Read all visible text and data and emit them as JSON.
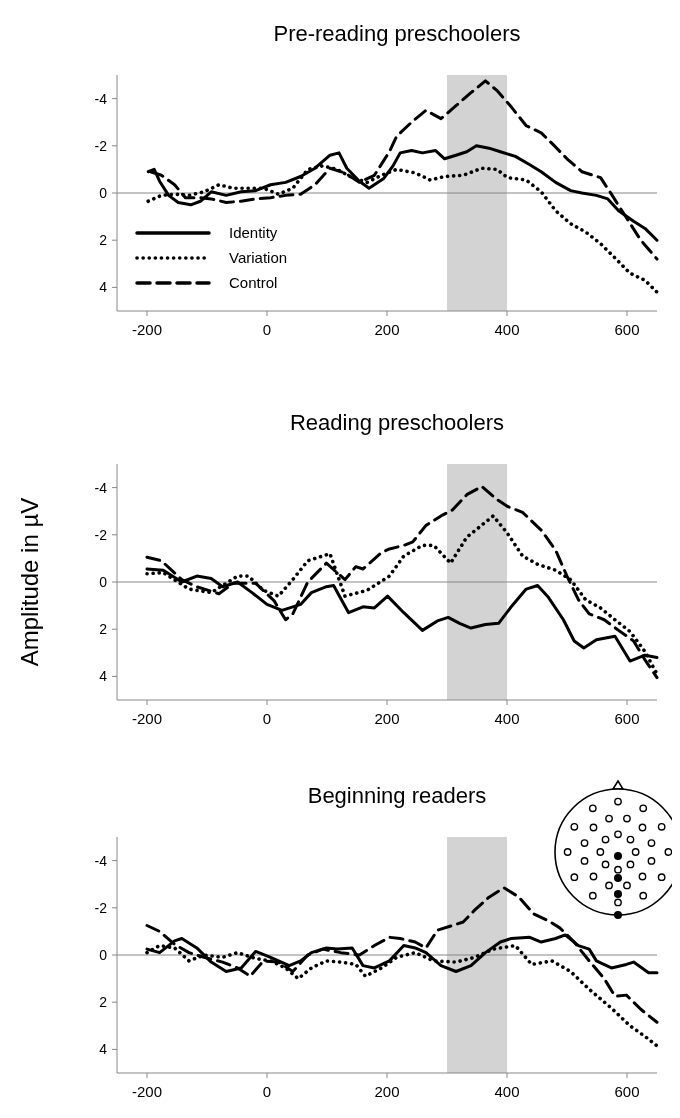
{
  "chart_data": [
    {
      "type": "line",
      "title": "Pre-reading preschoolers",
      "xlim": [
        -250,
        650
      ],
      "xticks": [
        -200,
        0,
        200,
        400,
        600
      ],
      "ylim": [
        5,
        -5
      ],
      "yticks": [
        -4,
        -2,
        0,
        2,
        4
      ],
      "legend": "bottom left",
      "bands": [
        {
          "axis": "x",
          "from": 300,
          "to": 400,
          "color": "#d3d3d3"
        }
      ],
      "ref_lines": [
        {
          "axis": "y",
          "value": 0,
          "color": "#888888"
        }
      ],
      "series": [
        {
          "name": "Identity",
          "color": "#000000",
          "line_style": "solid",
          "x": [
            -198,
            -188,
            -179,
            -164,
            -148,
            -127,
            -111,
            -93,
            -68,
            -43,
            -19,
            6,
            31,
            56,
            80,
            105,
            120,
            133,
            154,
            170,
            194,
            210,
            222,
            241,
            259,
            281,
            296,
            315,
            333,
            349,
            370,
            389,
            414,
            438,
            457,
            481,
            506,
            525,
            549,
            568,
            586,
            611,
            630,
            650
          ],
          "values": [
            -0.9,
            -1.0,
            -0.5,
            0.1,
            0.4,
            0.5,
            0.35,
            -0.05,
            0.1,
            -0.05,
            -0.1,
            -0.35,
            -0.45,
            -0.7,
            -1.05,
            -1.6,
            -1.7,
            -1.05,
            -0.5,
            -0.2,
            -0.6,
            -1.15,
            -1.7,
            -1.8,
            -1.7,
            -1.8,
            -1.45,
            -1.6,
            -1.75,
            -2.0,
            -1.9,
            -1.75,
            -1.55,
            -1.2,
            -0.9,
            -0.45,
            -0.1,
            0,
            0.1,
            0.25,
            0.75,
            1.2,
            1.5,
            2.0
          ]
        },
        {
          "name": "Variation",
          "color": "#000000",
          "line_style": "dotted",
          "x": [
            -198,
            -176,
            -154,
            -130,
            -105,
            -80,
            -56,
            -31,
            -6,
            19,
            43,
            68,
            93,
            117,
            142,
            167,
            191,
            216,
            247,
            272,
            296,
            327,
            358,
            383,
            401,
            432,
            457,
            481,
            506,
            531,
            556,
            580,
            605,
            630,
            650
          ],
          "values": [
            0.35,
            0.1,
            0.05,
            0.1,
            -0.05,
            -0.35,
            -0.2,
            -0.2,
            -0.2,
            0.05,
            -0.2,
            -1.0,
            -1.15,
            -1.0,
            -0.65,
            -0.45,
            -0.75,
            -1.0,
            -0.85,
            -0.55,
            -0.7,
            -0.75,
            -1.05,
            -1.0,
            -0.65,
            -0.55,
            -0.05,
            0.75,
            1.3,
            1.65,
            2.15,
            2.75,
            3.4,
            3.7,
            4.2
          ]
        },
        {
          "name": "Control",
          "color": "#000000",
          "line_style": "dashed",
          "x": [
            -194,
            -176,
            -154,
            -136,
            -111,
            -93,
            -68,
            -43,
            -19,
            6,
            31,
            56,
            80,
            105,
            130,
            154,
            179,
            204,
            216,
            241,
            265,
            290,
            315,
            340,
            364,
            383,
            407,
            432,
            457,
            475,
            500,
            525,
            556,
            574,
            599,
            623,
            650
          ],
          "values": [
            -0.9,
            -0.75,
            -0.35,
            0.2,
            0.2,
            0.25,
            0.4,
            0.35,
            0.25,
            0.2,
            0.1,
            0.05,
            -0.35,
            -1.05,
            -0.85,
            -0.45,
            -0.75,
            -1.75,
            -2.4,
            -3.0,
            -3.5,
            -3.15,
            -3.7,
            -4.25,
            -4.75,
            -4.35,
            -3.65,
            -2.85,
            -2.55,
            -2.1,
            -1.45,
            -0.9,
            -0.65,
            0.05,
            1.05,
            2.0,
            2.8
          ]
        }
      ]
    },
    {
      "type": "line",
      "title": "Reading preschoolers",
      "ylabel": "Amplitude in µV",
      "xlim": [
        -250,
        650
      ],
      "xticks": [
        -200,
        0,
        200,
        400,
        600
      ],
      "ylim": [
        5,
        -5
      ],
      "yticks": [
        -4,
        -2,
        0,
        2,
        4
      ],
      "bands": [
        {
          "axis": "x",
          "from": 300,
          "to": 400,
          "color": "#d3d3d3"
        }
      ],
      "ref_lines": [
        {
          "axis": "y",
          "value": 0,
          "color": "#888888"
        }
      ],
      "series": [
        {
          "color": "#000000",
          "line_style": "solid",
          "x": [
            -200,
            -173,
            -142,
            -117,
            -93,
            -74,
            -49,
            -25,
            0,
            25,
            56,
            74,
            99,
            111,
            136,
            160,
            179,
            201,
            228,
            259,
            284,
            302,
            321,
            340,
            364,
            386,
            407,
            432,
            451,
            469,
            494,
            512,
            528,
            549,
            580,
            605,
            630,
            650
          ],
          "values": [
            -0.55,
            -0.5,
            0,
            -0.25,
            -0.15,
            0.2,
            0,
            0.45,
            0.95,
            1.2,
            0.95,
            0.45,
            0.2,
            0.15,
            1.3,
            1.05,
            1.1,
            0.6,
            1.3,
            2.05,
            1.65,
            1.5,
            1.75,
            1.95,
            1.8,
            1.75,
            1.05,
            0.3,
            0.15,
            0.65,
            1.6,
            2.5,
            2.8,
            2.45,
            2.3,
            3.35,
            3.1,
            3.2
          ]
        },
        {
          "color": "#000000",
          "line_style": "dotted",
          "x": [
            -200,
            -173,
            -130,
            -93,
            -49,
            -31,
            -6,
            19,
            43,
            68,
            105,
            130,
            167,
            204,
            228,
            259,
            278,
            306,
            333,
            377,
            401,
            426,
            451,
            481,
            506,
            531,
            556,
            580,
            605,
            630,
            650
          ],
          "values": [
            -0.35,
            -0.4,
            0.3,
            0.45,
            -0.25,
            -0.25,
            0.35,
            0.6,
            -0.1,
            -0.9,
            -1.2,
            0.6,
            0.35,
            -0.25,
            -1.1,
            -1.55,
            -1.55,
            -0.8,
            -1.9,
            -2.8,
            -2.05,
            -1.1,
            -0.75,
            -0.5,
            -0.1,
            0.75,
            1.1,
            1.6,
            2.1,
            2.95,
            3.9
          ]
        },
        {
          "color": "#000000",
          "line_style": "dashed",
          "x": [
            -200,
            -176,
            -142,
            -117,
            -80,
            -56,
            -19,
            12,
            31,
            43,
            68,
            99,
            130,
            148,
            160,
            191,
            204,
            228,
            243,
            265,
            290,
            309,
            333,
            358,
            383,
            401,
            426,
            457,
            481,
            500,
            519,
            537,
            562,
            586,
            611,
            630,
            650
          ],
          "values": [
            -1.05,
            -0.9,
            -0.1,
            0.2,
            0.5,
            0.05,
            0.05,
            0.8,
            1.6,
            1.35,
            0,
            -0.8,
            -0.1,
            -0.65,
            -0.55,
            -1.25,
            -1.4,
            -1.55,
            -1.7,
            -2.4,
            -2.8,
            -3.05,
            -3.7,
            -4.05,
            -3.5,
            -3.2,
            -2.95,
            -2.2,
            -1.35,
            -0.25,
            0.75,
            1.35,
            1.6,
            2.05,
            2.5,
            3.3,
            4.05
          ]
        }
      ]
    },
    {
      "type": "line",
      "title": "Beginning readers",
      "xlim": [
        -250,
        650
      ],
      "xticks": [
        -200,
        0,
        200,
        400,
        600
      ],
      "ylim": [
        5,
        -5
      ],
      "yticks": [
        -4,
        -2,
        0,
        2,
        4
      ],
      "bands": [
        {
          "axis": "x",
          "from": 300,
          "to": 400,
          "color": "#d3d3d3"
        }
      ],
      "ref_lines": [
        {
          "axis": "y",
          "value": 0,
          "color": "#888888"
        }
      ],
      "series": [
        {
          "color": "#000000",
          "line_style": "solid",
          "x": [
            -200,
            -179,
            -154,
            -142,
            -117,
            -93,
            -68,
            -43,
            -19,
            6,
            37,
            56,
            74,
            99,
            117,
            142,
            160,
            179,
            204,
            228,
            247,
            265,
            290,
            315,
            340,
            364,
            389,
            407,
            438,
            457,
            481,
            497,
            519,
            537,
            549,
            574,
            599,
            611,
            636,
            650
          ],
          "values": [
            -0.25,
            -0.1,
            -0.6,
            -0.7,
            -0.3,
            0.3,
            0.7,
            0.55,
            -0.15,
            0.1,
            0.45,
            0.25,
            -0.1,
            -0.3,
            -0.25,
            -0.3,
            0.45,
            0.55,
            0.25,
            -0.4,
            -0.3,
            -0.1,
            0.45,
            0.7,
            0.45,
            -0.1,
            -0.55,
            -0.7,
            -0.75,
            -0.55,
            -0.7,
            -0.85,
            -0.4,
            -0.25,
            0.25,
            0.55,
            0.4,
            0.3,
            0.75,
            0.75
          ]
        },
        {
          "color": "#000000",
          "line_style": "dotted",
          "x": [
            -200,
            -179,
            -154,
            -130,
            -105,
            -74,
            -49,
            -19,
            6,
            31,
            52,
            74,
            99,
            123,
            148,
            164,
            191,
            216,
            247,
            278,
            315,
            346,
            377,
            414,
            441,
            475,
            506,
            537,
            574,
            605,
            630,
            650
          ],
          "values": [
            -0.1,
            -0.4,
            -0.3,
            0.25,
            0,
            0.1,
            -0.1,
            0.15,
            0.25,
            0.55,
            1.0,
            0.55,
            0.25,
            0.3,
            0.4,
            0.9,
            0.55,
            0.1,
            -0.1,
            0.25,
            0.3,
            0.1,
            -0.25,
            -0.4,
            0.4,
            0.25,
            0.7,
            1.45,
            2.25,
            3.0,
            3.45,
            3.85
          ]
        },
        {
          "color": "#000000",
          "line_style": "dashed",
          "x": [
            -200,
            -179,
            -154,
            -130,
            -105,
            -74,
            -49,
            -28,
            -6,
            19,
            43,
            68,
            93,
            123,
            154,
            179,
            204,
            222,
            247,
            265,
            284,
            309,
            327,
            346,
            370,
            395,
            420,
            444,
            469,
            488,
            512,
            537,
            562,
            580,
            599,
            623,
            650
          ],
          "values": [
            -1.25,
            -1.0,
            -0.45,
            -0.1,
            0.1,
            0.3,
            0.55,
            0.9,
            0.25,
            0.3,
            0.7,
            0,
            -0.25,
            -0.1,
            0,
            -0.4,
            -0.75,
            -0.7,
            -0.55,
            -0.3,
            -1.05,
            -1.25,
            -1.4,
            -1.9,
            -2.45,
            -2.85,
            -2.45,
            -1.75,
            -1.45,
            -1.15,
            -0.55,
            0.25,
            1.0,
            1.75,
            1.7,
            2.3,
            2.85
          ]
        }
      ]
    }
  ]
}
